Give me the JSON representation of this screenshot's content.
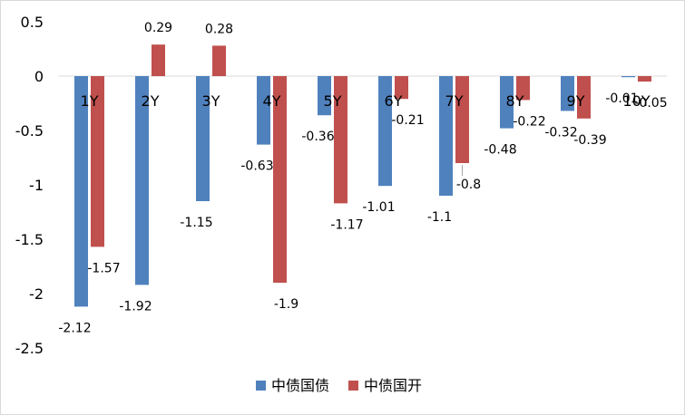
{
  "chart_data": {
    "type": "bar",
    "categories": [
      "1Y",
      "2Y",
      "3Y",
      "4Y",
      "5Y",
      "6Y",
      "7Y",
      "8Y",
      "9Y",
      "10Y"
    ],
    "series": [
      {
        "name": "中债国债",
        "color": "#4f81bd",
        "values": [
          -2.12,
          -1.92,
          -1.15,
          -0.63,
          -0.36,
          -1.01,
          -1.1,
          -0.48,
          -0.32,
          -0.01
        ]
      },
      {
        "name": "中债国开",
        "color": "#c0504d",
        "values": [
          -1.57,
          0.29,
          0.28,
          -1.9,
          -1.17,
          -0.21,
          -0.8,
          -0.22,
          -0.39,
          -0.05
        ]
      }
    ],
    "yticks": [
      "0.5",
      "0",
      "-0.5",
      "-1",
      "-1.5",
      "-2",
      "-2.5"
    ],
    "ylim": [
      -2.5,
      0.5
    ],
    "grid": false,
    "legend": "bottom-center"
  }
}
